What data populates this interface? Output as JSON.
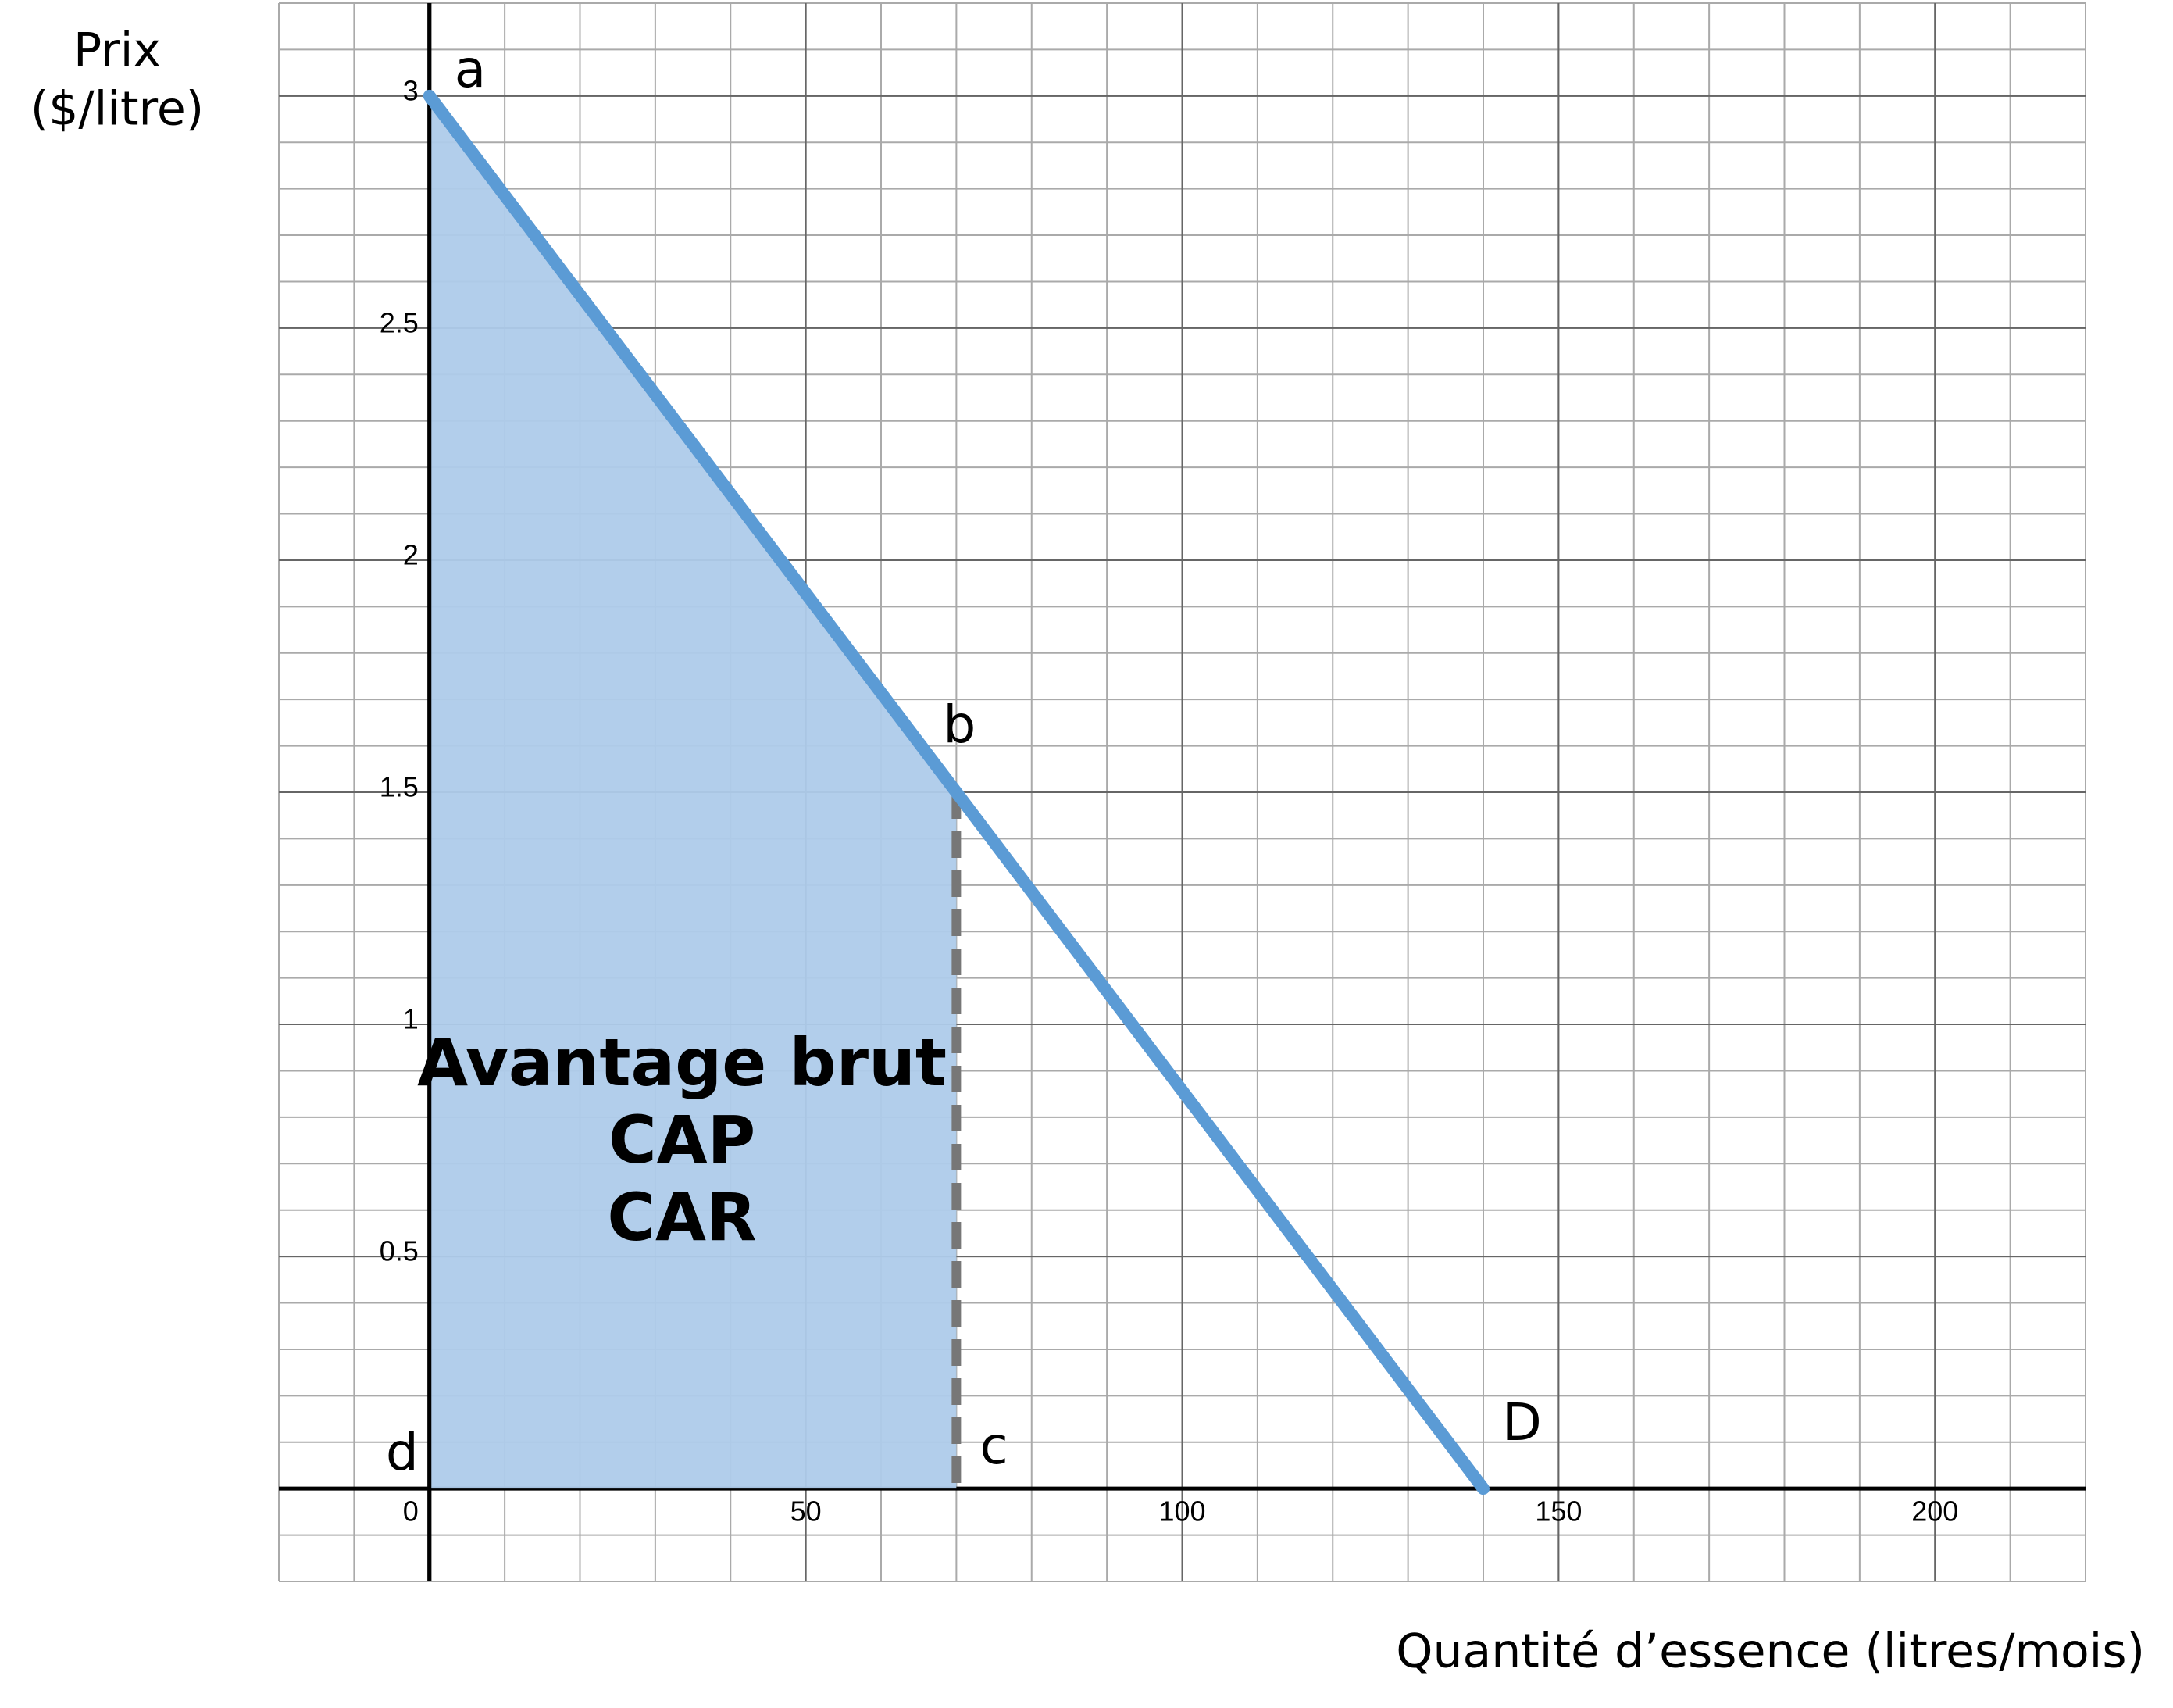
{
  "chart_data": {
    "type": "line",
    "ylabel": [
      "Prix",
      "($/litre)"
    ],
    "xlabel": "Quantité d’essence (litres/mois)",
    "xlim": [
      -20,
      220
    ],
    "ylim": [
      -0.2,
      3.2
    ],
    "xticks": [
      0,
      50,
      100,
      150,
      200
    ],
    "yticks": [
      0.5,
      1,
      1.5,
      2,
      2.5,
      3
    ],
    "grid": true,
    "series": [
      {
        "x": [
          0,
          140
        ],
        "values": [
          3,
          0
        ],
        "color": "#5b9bd5"
      }
    ],
    "area": {
      "x": [
        0,
        70,
        70,
        0
      ],
      "values": [
        3,
        1.5,
        0,
        0
      ],
      "color": "#aecbea",
      "labels": [
        "Avantage brut",
        "CAP",
        "CAR"
      ]
    },
    "dashed": {
      "x": [
        70,
        70
      ],
      "values": [
        1.5,
        0
      ],
      "color": "#777777"
    },
    "points": [
      {
        "label": "a",
        "x": 0,
        "y": 3
      },
      {
        "label": "b",
        "x": 70,
        "y": 1.5
      },
      {
        "label": "c",
        "x": 70,
        "y": 0
      },
      {
        "label": "d",
        "x": 0,
        "y": 0
      },
      {
        "label": "D",
        "x": 140,
        "y": 0
      }
    ]
  }
}
